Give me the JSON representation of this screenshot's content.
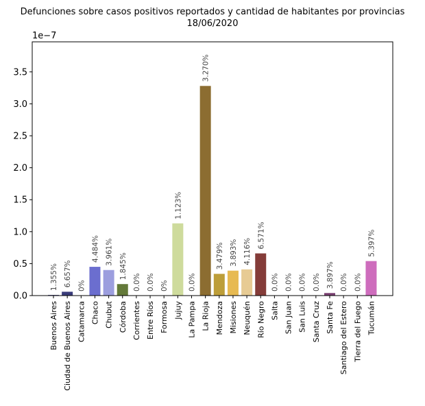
{
  "chart_data": {
    "type": "bar",
    "title": "Defunciones sobre casos positivos reportados y cantidad de habitantes por provincias",
    "subtitle": "18/06/2020",
    "xlabel": "",
    "ylabel": "",
    "y_scale_label": "1e−7",
    "y_multiplier": 1e-07,
    "ylim": [
      0,
      3.97
    ],
    "y_ticks": [
      0.0,
      0.5,
      1.0,
      1.5,
      2.0,
      2.5,
      3.0,
      3.5
    ],
    "y_tick_labels": [
      "0.0",
      "0.5",
      "1.0",
      "1.5",
      "2.0",
      "2.5",
      "3.0",
      "3.5"
    ],
    "grid": false,
    "categories": [
      "Buenos Aires",
      "Ciudad de Buenos Aires",
      "Catamarca",
      "Chaco",
      "Chubut",
      "Córdoba",
      "Corrientes",
      "Entre Ríos",
      "Formosa",
      "Jujuy",
      "La Pampa",
      "La Rioja",
      "Mendoza",
      "Misiones",
      "Neuquén",
      "Río Negro",
      "Salta",
      "San Juan",
      "San Luis",
      "Santa Cruz",
      "Santa Fe",
      "Santiago del Estero",
      "Tierra del Fuego",
      "Tucumán"
    ],
    "values": [
      0.01,
      0.06,
      0.0,
      0.45,
      0.4,
      0.18,
      0.0,
      0.0,
      0.0,
      1.13,
      0.0,
      3.28,
      0.34,
      0.39,
      0.41,
      0.66,
      0.0,
      0.0,
      0.0,
      0.0,
      0.04,
      0.0,
      0.0,
      0.54
    ],
    "data_labels": [
      "1.355%",
      "6.657%",
      "0%",
      "4.484%",
      "3.961%",
      "1.845%",
      "0.0%",
      "0.0%",
      "0%",
      "1.123%",
      "0.0%",
      "3.270%",
      "3.479%",
      "3.893%",
      "4.116%",
      "6.571%",
      "0.0%",
      "0.0%",
      "0.0%",
      "0.0%",
      "3.897%",
      "0.0%",
      "0.0%",
      "5.397%"
    ],
    "colors": [
      "#393b79",
      "#393b79",
      "#5254a3",
      "#6b6ecf",
      "#9c9ede",
      "#637939",
      "#8ca252",
      "#b5cf6b",
      "#cedb9c",
      "#cedb9c",
      "#8c6d31",
      "#8c6d31",
      "#bd9e39",
      "#e7ba52",
      "#e7cb94",
      "#843c39",
      "#ad494a",
      "#d6616b",
      "#e7969c",
      "#7b4173",
      "#7b4173",
      "#a55194",
      "#ce6dbd",
      "#ce6dbd"
    ]
  }
}
